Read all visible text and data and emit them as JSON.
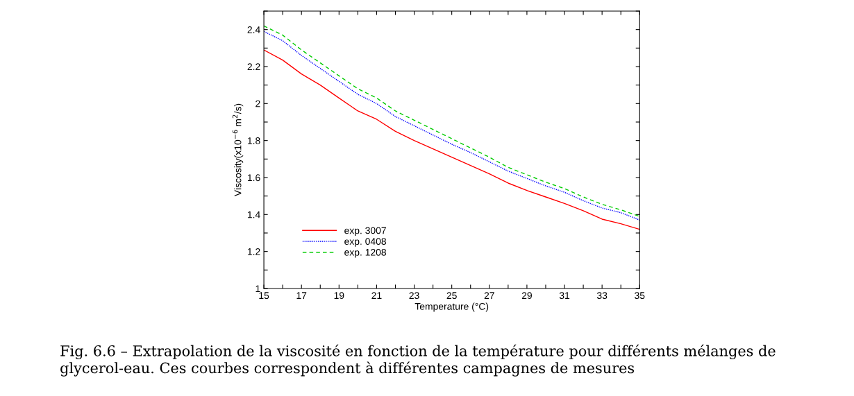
{
  "chart_data": {
    "type": "line",
    "xlabel": "Temperature (°C)",
    "ylabel": "Viscosity(x10$^{−6}$ m$^{2}$/s)",
    "x": [
      15,
      16,
      17,
      18,
      19,
      20,
      21,
      22,
      23,
      24,
      25,
      26,
      27,
      28,
      29,
      30,
      31,
      32,
      33,
      34,
      35
    ],
    "series": [
      {
        "name": "exp. 3007",
        "color": "#ff0000",
        "line_style": "solid",
        "values": [
          2.29,
          2.235,
          2.16,
          2.1,
          2.03,
          1.96,
          1.915,
          1.85,
          1.8,
          1.755,
          1.71,
          1.665,
          1.62,
          1.57,
          1.53,
          1.495,
          1.46,
          1.42,
          1.375,
          1.35,
          1.32
        ]
      },
      {
        "name": "exp. 0408",
        "color": "#0000ff",
        "line_style": "dotted",
        "values": [
          2.39,
          2.34,
          2.26,
          2.19,
          2.12,
          2.05,
          2.0,
          1.93,
          1.88,
          1.83,
          1.78,
          1.735,
          1.685,
          1.635,
          1.595,
          1.555,
          1.52,
          1.475,
          1.435,
          1.41,
          1.37
        ]
      },
      {
        "name": "exp. 1208",
        "color": "#00cc00",
        "line_style": "dashed",
        "values": [
          2.42,
          2.37,
          2.29,
          2.22,
          2.15,
          2.08,
          2.03,
          1.96,
          1.91,
          1.86,
          1.81,
          1.76,
          1.71,
          1.655,
          1.615,
          1.575,
          1.54,
          1.495,
          1.455,
          1.425,
          1.39
        ]
      }
    ],
    "xlim": [
      15,
      35
    ],
    "xticks": [
      15,
      {
        "value": 16,
        "label": null
      },
      17,
      {
        "value": 18,
        "label": null
      },
      19,
      {
        "value": 20,
        "label": null
      },
      21,
      {
        "value": 22,
        "label": null
      },
      23,
      {
        "value": 24,
        "label": null
      },
      25,
      {
        "value": 26,
        "label": null
      },
      27,
      {
        "value": 28,
        "label": null
      },
      29,
      {
        "value": 30,
        "label": null
      },
      31,
      {
        "value": 32,
        "label": null
      },
      33,
      {
        "value": 34,
        "label": null
      },
      35
    ],
    "ylim": [
      1,
      2.5
    ],
    "yticks": [
      1,
      {
        "value": 1.1,
        "label": null
      },
      1.2,
      {
        "value": 1.3,
        "label": null
      },
      1.4,
      {
        "value": 1.5,
        "label": null
      },
      1.6,
      {
        "value": 1.7,
        "label": null
      },
      1.8,
      {
        "value": 1.9,
        "label": null
      },
      2,
      {
        "value": 2.1,
        "label": null
      },
      2.2,
      {
        "value": 2.3,
        "label": null
      },
      2.4,
      {
        "value": 2.5,
        "label": null
      }
    ],
    "grid": false,
    "legend": "bottom left",
    "marker": "none",
    "annotations": [
      "Fig. 6.6 – Extrapolation de la viscosité en fonction de la température pour différents mélanges de glycerol-eau. Ces courbes correspondent à différentes campagnes de mesures"
    ]
  }
}
